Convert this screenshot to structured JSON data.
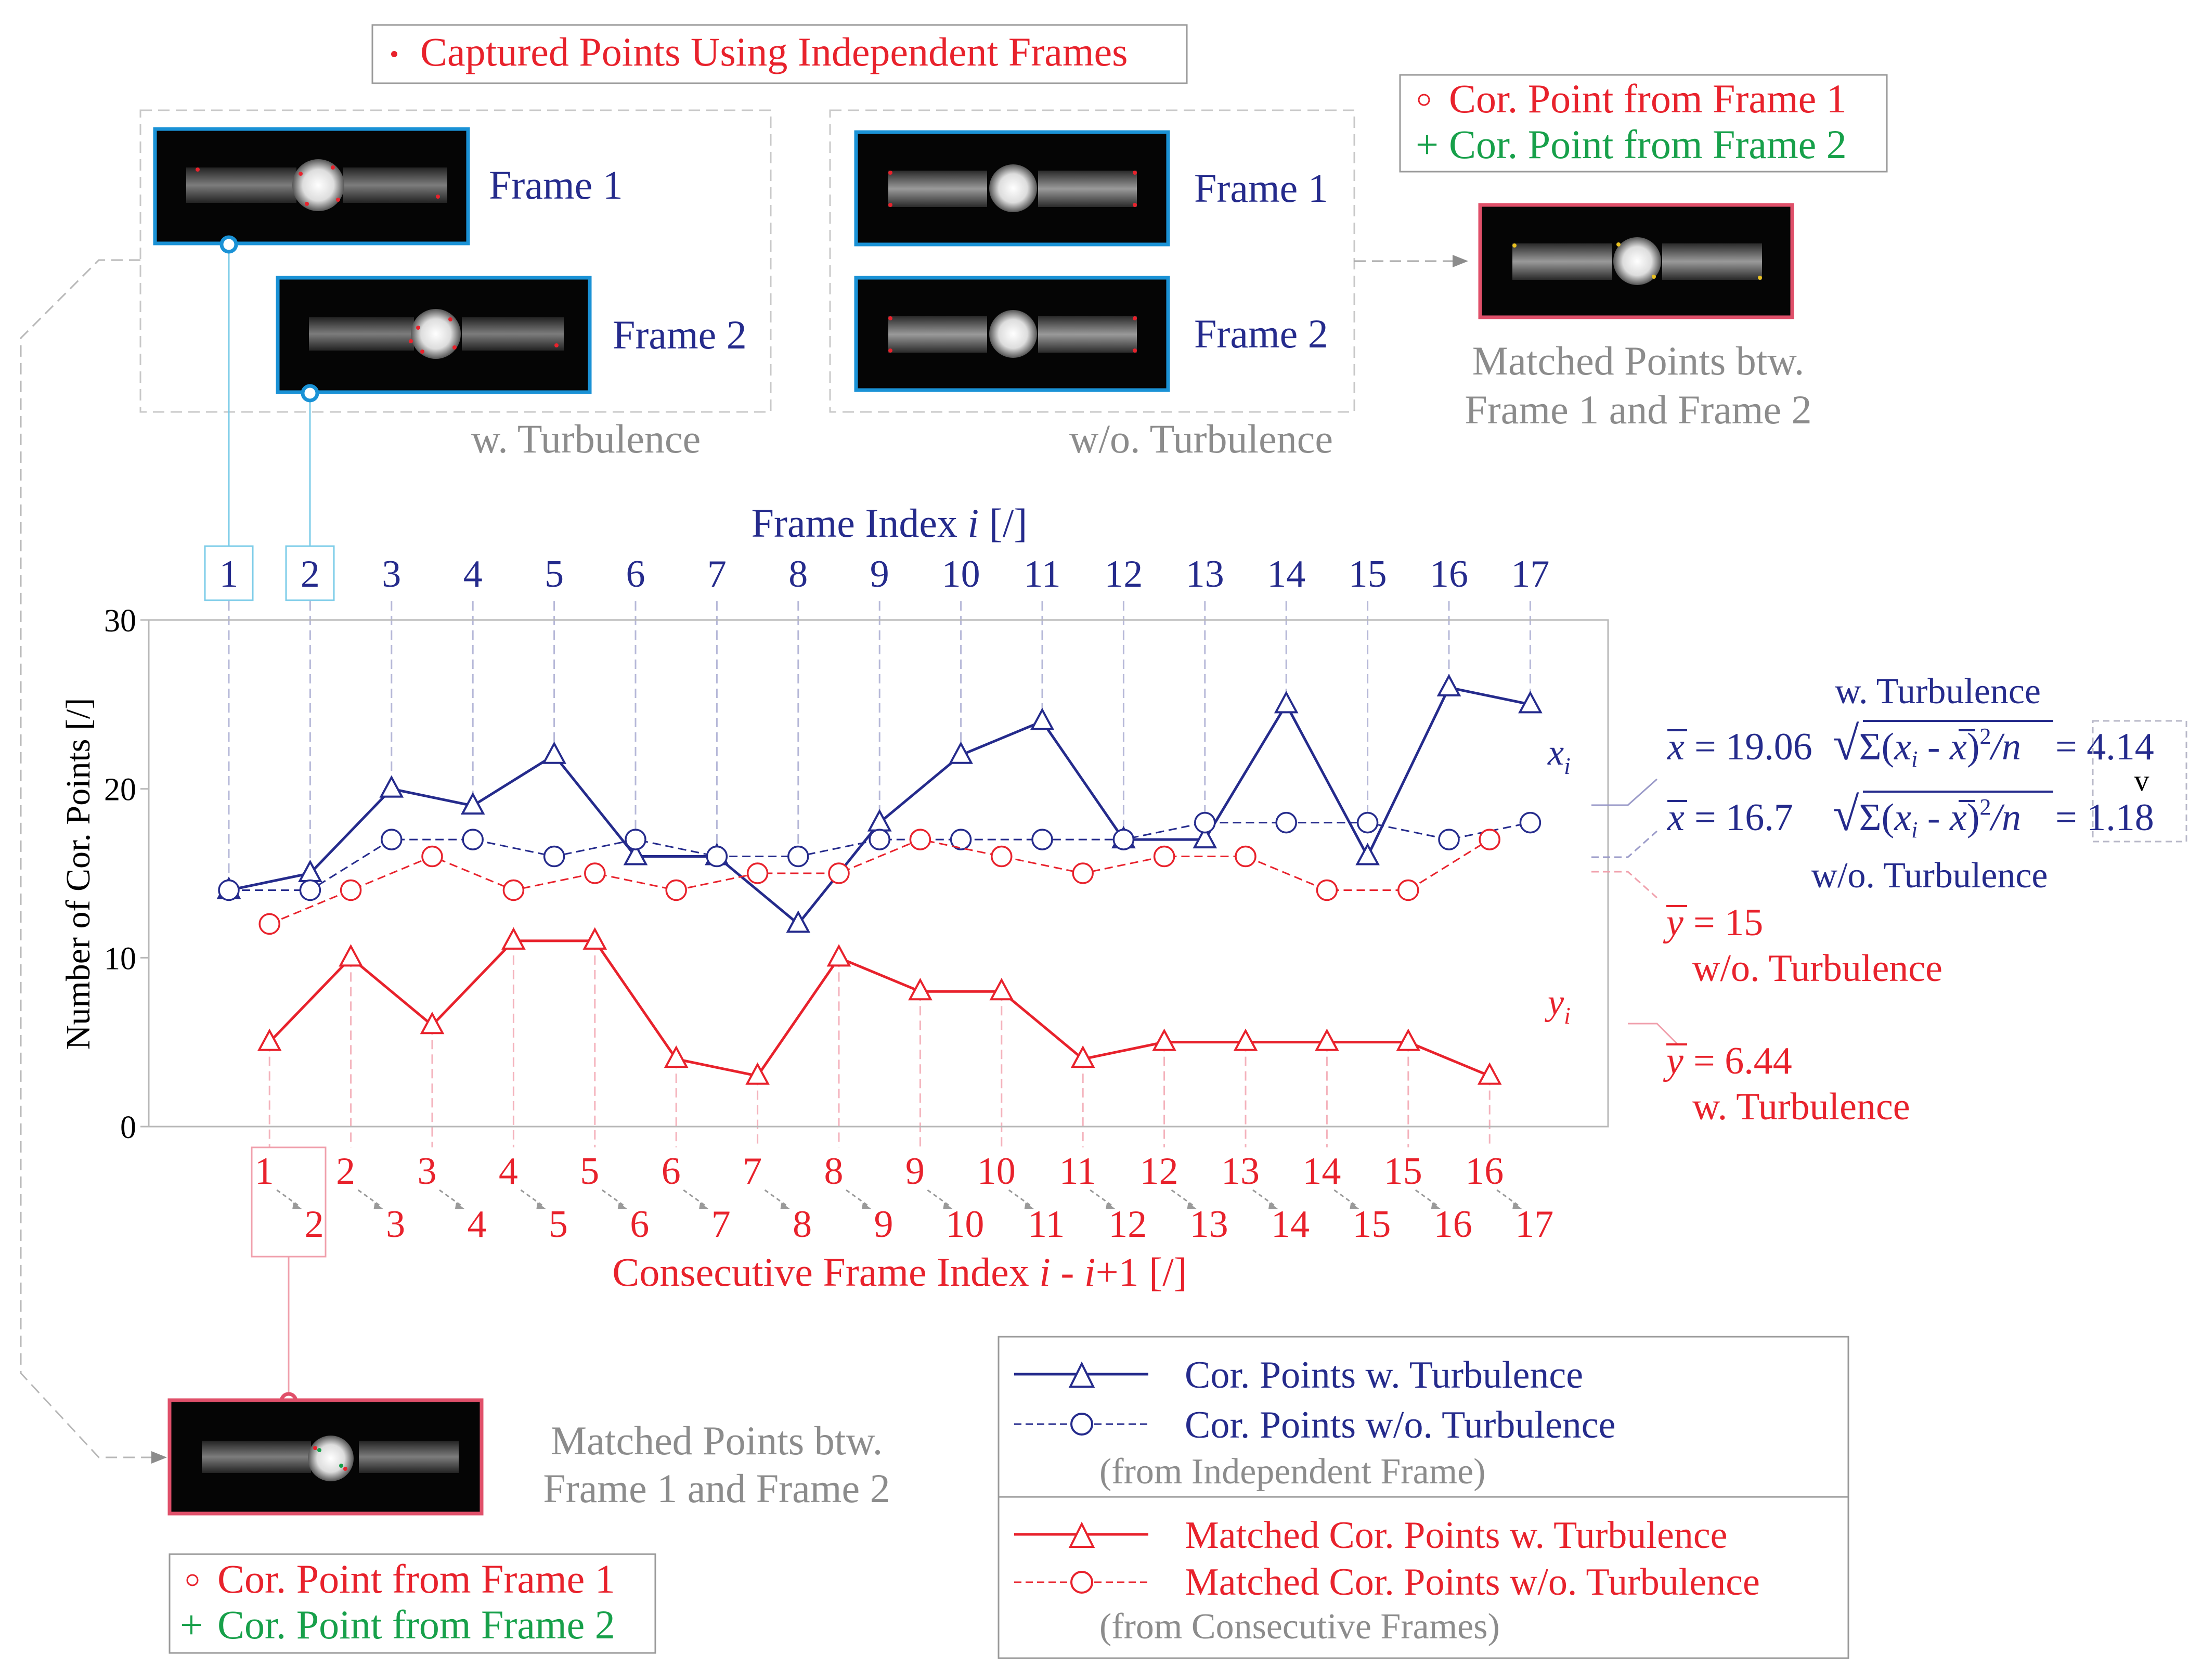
{
  "colors": {
    "blue": "#252b8c",
    "red": "#e8222c",
    "green": "#17a04a",
    "gray": "#8c8c8c",
    "cyan_frame": "#1a92d6",
    "pink_frame": "#e0506a"
  },
  "top_legend": {
    "captured_label": "Captured Points Using Independent Frames"
  },
  "panels": {
    "with_turbulence": {
      "caption": "w. Turbulence",
      "frame1_label": "Frame 1",
      "frame2_label": "Frame 2"
    },
    "without_turbulence": {
      "caption": "w/o. Turbulence",
      "frame1_label": "Frame 1",
      "frame2_label": "Frame 2"
    },
    "matched_top": {
      "legend_frame1": "Cor. Point from Frame 1",
      "legend_frame2": "Cor. Point from Frame 2",
      "caption_line1": "Matched Points btw.",
      "caption_line2": "Frame 1 and Frame 2"
    },
    "matched_bottom": {
      "caption_line1": "Matched Points btw.",
      "caption_line2": "Frame 1 and Frame 2",
      "legend_frame1": "Cor. Point from Frame 1",
      "legend_frame2": "Cor. Point from Frame 2"
    }
  },
  "chart_data": {
    "type": "line",
    "ylabel": "Number of  Cor. Points [/]",
    "ylim": [
      0,
      30
    ],
    "yticks": [
      0,
      10,
      20,
      30
    ],
    "top_axis": {
      "label_prefix": "Frame Index ",
      "label_var": "i",
      "label_suffix": " [/]",
      "ticks": [
        "1",
        "2",
        "3",
        "4",
        "5",
        "6",
        "7",
        "8",
        "9",
        "10",
        "11",
        "12",
        "13",
        "14",
        "15",
        "16",
        "17"
      ]
    },
    "bottom_axis": {
      "label_prefix": "Consecutive Frame Index ",
      "label_var1": "i",
      "label_mid": " - ",
      "label_var2": "i",
      "label_suffix": "+1 [/]",
      "ticks_first": [
        "1",
        "2",
        "3",
        "4",
        "5",
        "6",
        "7",
        "8",
        "9",
        "10",
        "11",
        "12",
        "13",
        "14",
        "15",
        "16"
      ],
      "ticks_second": [
        "2",
        "3",
        "4",
        "5",
        "6",
        "7",
        "8",
        "9",
        "10",
        "11",
        "12",
        "13",
        "14",
        "15",
        "16",
        "17"
      ]
    },
    "series": [
      {
        "name": "Cor. Points w. Turbulence",
        "axis": "frame",
        "style": "solid-triangle-blue",
        "values": [
          14,
          15,
          20,
          19,
          22,
          16,
          16,
          12,
          18,
          22,
          24,
          17,
          17,
          25,
          16,
          26,
          25
        ]
      },
      {
        "name": "Cor. Points w/o. Turbulence",
        "axis": "frame",
        "style": "dashed-circle-blue",
        "values": [
          14,
          14,
          17,
          17,
          16,
          17,
          16,
          16,
          17,
          17,
          17,
          17,
          18,
          18,
          18,
          17,
          18
        ]
      },
      {
        "name": "Matched Cor. Points w. Turbulence",
        "axis": "consecutive",
        "style": "solid-triangle-red",
        "values": [
          5,
          10,
          6,
          11,
          11,
          4,
          3,
          10,
          8,
          8,
          4,
          5,
          5,
          5,
          5,
          3
        ]
      },
      {
        "name": "Matched Cor. Points w/o. Turbulence",
        "axis": "consecutive",
        "style": "dashed-circle-red",
        "values": [
          12,
          14,
          16,
          14,
          15,
          14,
          15,
          15,
          17,
          16,
          15,
          16,
          16,
          14,
          14,
          17
        ]
      }
    ],
    "series_labels": {
      "x": "x",
      "y": "y",
      "sub": "i"
    },
    "annotations": {
      "blue_with": {
        "title": "w. Turbulence",
        "mean": "= 19.06",
        "sd": "= 4.14"
      },
      "blue_without": {
        "mean": "= 16.7",
        "sd": "= 1.18",
        "title": "w/o. Turbulence"
      },
      "sd_formula": {
        "open": "√",
        "body_pre": "Σ(",
        "var": "x",
        "sub": "i",
        "minus": " - ",
        "close": ")",
        "exp": "2",
        "per": "/n"
      },
      "compare_symbol": "v",
      "red_without": {
        "mean": "= 15",
        "title": "w/o. Turbulence"
      },
      "red_with": {
        "mean": "= 6.44",
        "title": "w. Turbulence"
      }
    },
    "legend": {
      "blue_note": "(from Independent Frame)",
      "red_note": "(from Consecutive Frames)"
    }
  }
}
